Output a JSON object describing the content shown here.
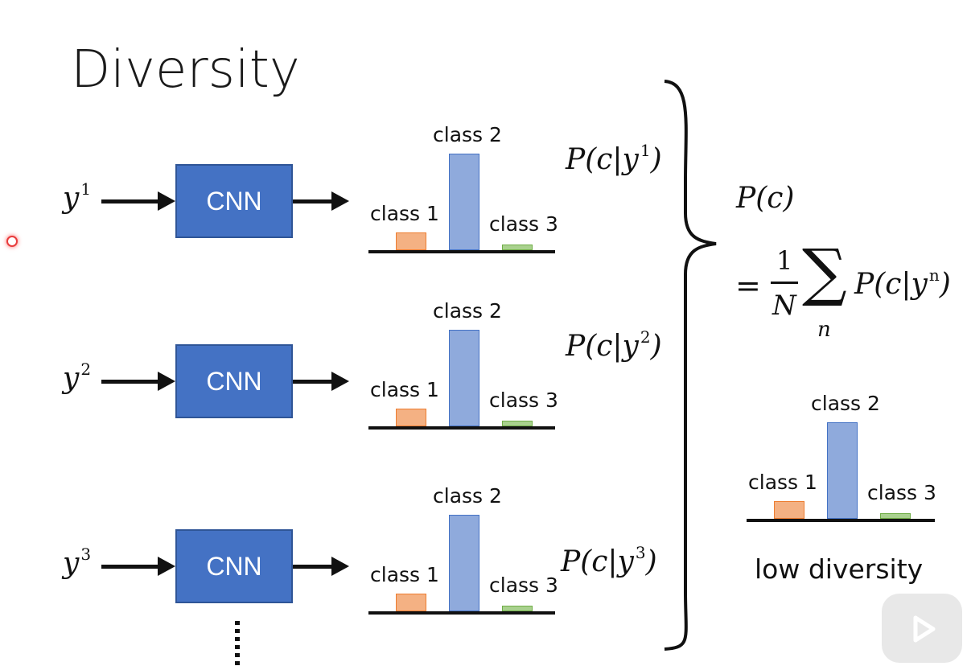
{
  "title": "Diversity",
  "rows": [
    {
      "input_base": "y",
      "input_sup": "1",
      "cnn": "CNN",
      "prob": "P(c|y",
      "prob_sup": "1",
      "prob_close": ")"
    },
    {
      "input_base": "y",
      "input_sup": "2",
      "cnn": "CNN",
      "prob": "P(c|y",
      "prob_sup": "2",
      "prob_close": ")"
    },
    {
      "input_base": "y",
      "input_sup": "3",
      "cnn": "CNN",
      "prob": "P(c|y",
      "prob_sup": "3",
      "prob_close": ")"
    }
  ],
  "classes": [
    "class 1",
    "class 2",
    "class 3"
  ],
  "chart_data": {
    "type": "bar",
    "categories": [
      "class 1",
      "class 2",
      "class 3"
    ],
    "values": [
      0.18,
      1.0,
      0.06
    ]
  },
  "formula": {
    "lhs": "P(c)",
    "eq": "=",
    "num": "1",
    "den": "N",
    "sum": "∑",
    "idx": "n",
    "term": "P(c|y",
    "term_sup": "n",
    "term_close": ")"
  },
  "result_label": "low diversity",
  "more_rows": "⋮",
  "colors": {
    "cnn": "#4472c4",
    "class1": "#f4b183",
    "class2": "#8faadc",
    "class3": "#a9d18e"
  }
}
